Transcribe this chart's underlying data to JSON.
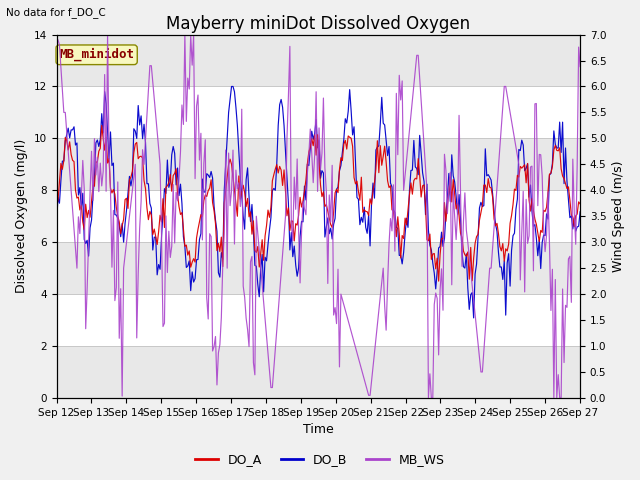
{
  "title": "Mayberry miniDot Dissolved Oxygen",
  "subtitle": "No data for f_DO_C",
  "xlabel": "Time",
  "ylabel_left": "Dissolved Oxygen (mg/l)",
  "ylabel_right": "Wind Speed (m/s)",
  "annotation": "MB_minidot",
  "ylim_left": [
    0,
    14
  ],
  "ylim_right": [
    0.0,
    7.0
  ],
  "yticks_left": [
    0,
    2,
    4,
    6,
    8,
    10,
    12,
    14
  ],
  "yticks_right": [
    0.0,
    0.5,
    1.0,
    1.5,
    2.0,
    2.5,
    3.0,
    3.5,
    4.0,
    4.5,
    5.0,
    5.5,
    6.0,
    6.5,
    7.0
  ],
  "color_DO_A": "#dd0000",
  "color_DO_B": "#0000cc",
  "color_MB_WS": "#aa44cc",
  "fig_facecolor": "#f0f0f0",
  "plot_bg_color": "#ffffff",
  "grid_color": "#c8c8c8",
  "alt_band_color": "#e8e8e8",
  "legend_labels": [
    "DO_A",
    "DO_B",
    "MB_WS"
  ],
  "x_tick_labels": [
    "Sep 12",
    "Sep 13",
    "Sep 14",
    "Sep 15",
    "Sep 16",
    "Sep 17",
    "Sep 18",
    "Sep 19",
    "Sep 20",
    "Sep 21",
    "Sep 22",
    "Sep 23",
    "Sep 24",
    "Sep 25",
    "Sep 26",
    "Sep 27"
  ],
  "title_fontsize": 12,
  "axis_label_fontsize": 9,
  "tick_fontsize": 7.5,
  "legend_fontsize": 9,
  "annotation_fontsize": 9
}
